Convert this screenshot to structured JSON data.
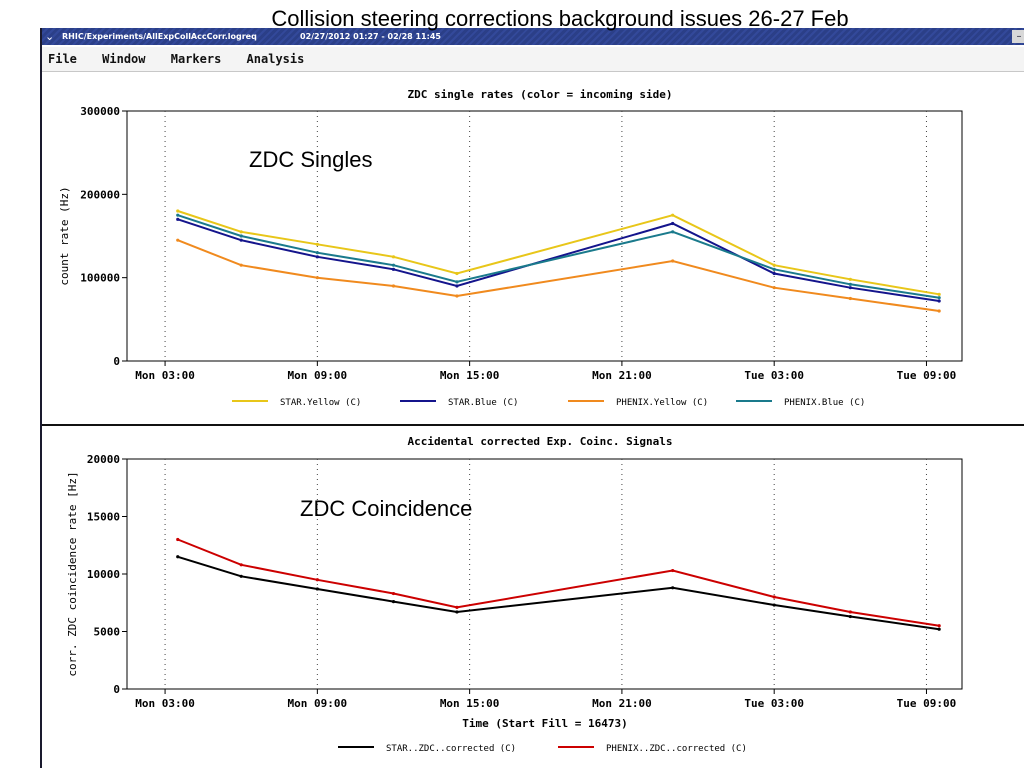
{
  "slide_title": "Collision steering corrections background issues 26-27 Feb",
  "window": {
    "path": "RHIC/Experiments/AllExpCollAccCorr.logreq",
    "range": "02/27/2012 01:27 - 02/28 11:45"
  },
  "menu": {
    "file": "File",
    "window": "Window",
    "markers": "Markers",
    "analysis": "Analysis"
  },
  "annotations": {
    "singles": "ZDC Singles",
    "coincidence": "ZDC Coincidence"
  },
  "colors": {
    "star_yellow": "#e8c619",
    "star_blue": "#14148c",
    "phenix_yellow": "#f08a1e",
    "phenix_blue": "#1a7a8c",
    "star_zdc": "#000000",
    "phenix_zdc": "#cc0000"
  },
  "chart_data": [
    {
      "type": "line",
      "title": "ZDC single rates (color  = incoming side)",
      "ylabel": "count rate (Hz)",
      "ylim": [
        0,
        300000
      ],
      "yticks": [
        "300000",
        "200000",
        "100000",
        "0"
      ],
      "xticks": [
        "Mon 03:00",
        "Mon 09:00",
        "Mon 15:00",
        "Mon 21:00",
        "Tue 03:00",
        "Tue 09:00"
      ],
      "grid": "dotted vertical at ticks",
      "x": [
        "Mon 03:30",
        "Mon 06:00",
        "Mon 09:00",
        "Mon 12:00",
        "Mon 14:30",
        "Mon 23:00",
        "Tue 03:00",
        "Tue 06:00",
        "Tue 09:30"
      ],
      "series": [
        {
          "name": "STAR.Yellow (C)",
          "values": [
            180000,
            155000,
            140000,
            125000,
            105000,
            175000,
            115000,
            98000,
            80000
          ]
        },
        {
          "name": "STAR.Blue (C)",
          "values": [
            170000,
            145000,
            125000,
            110000,
            90000,
            165000,
            105000,
            88000,
            72000
          ]
        },
        {
          "name": "PHENIX.Yellow (C)",
          "values": [
            145000,
            115000,
            100000,
            90000,
            78000,
            120000,
            88000,
            75000,
            60000
          ]
        },
        {
          "name": "PHENIX.Blue (C)",
          "values": [
            175000,
            150000,
            130000,
            115000,
            95000,
            155000,
            110000,
            92000,
            76000
          ]
        }
      ]
    },
    {
      "type": "line",
      "title": "Accidental corrected Exp. Coinc. Signals",
      "ylabel": "corr. ZDC coincidence rate [Hz]",
      "xlabel": "Time (Start Fill = 16473)",
      "ylim": [
        0,
        20000
      ],
      "yticks": [
        "20000",
        "15000",
        "10000",
        "5000",
        "0"
      ],
      "xticks": [
        "Mon 03:00",
        "Mon 09:00",
        "Mon 15:00",
        "Mon 21:00",
        "Tue 03:00",
        "Tue 09:00"
      ],
      "x": [
        "Mon 03:30",
        "Mon 06:00",
        "Mon 09:00",
        "Mon 12:00",
        "Mon 14:30",
        "Mon 23:00",
        "Tue 03:00",
        "Tue 06:00",
        "Tue 09:30"
      ],
      "series": [
        {
          "name": "STAR..ZDC..corrected (C)",
          "values": [
            11500,
            9800,
            8700,
            7600,
            6700,
            8800,
            7300,
            6300,
            5200
          ]
        },
        {
          "name": "PHENIX..ZDC..corrected (C)",
          "values": [
            13000,
            10800,
            9500,
            8300,
            7100,
            10300,
            8000,
            6700,
            5500
          ]
        }
      ]
    }
  ]
}
